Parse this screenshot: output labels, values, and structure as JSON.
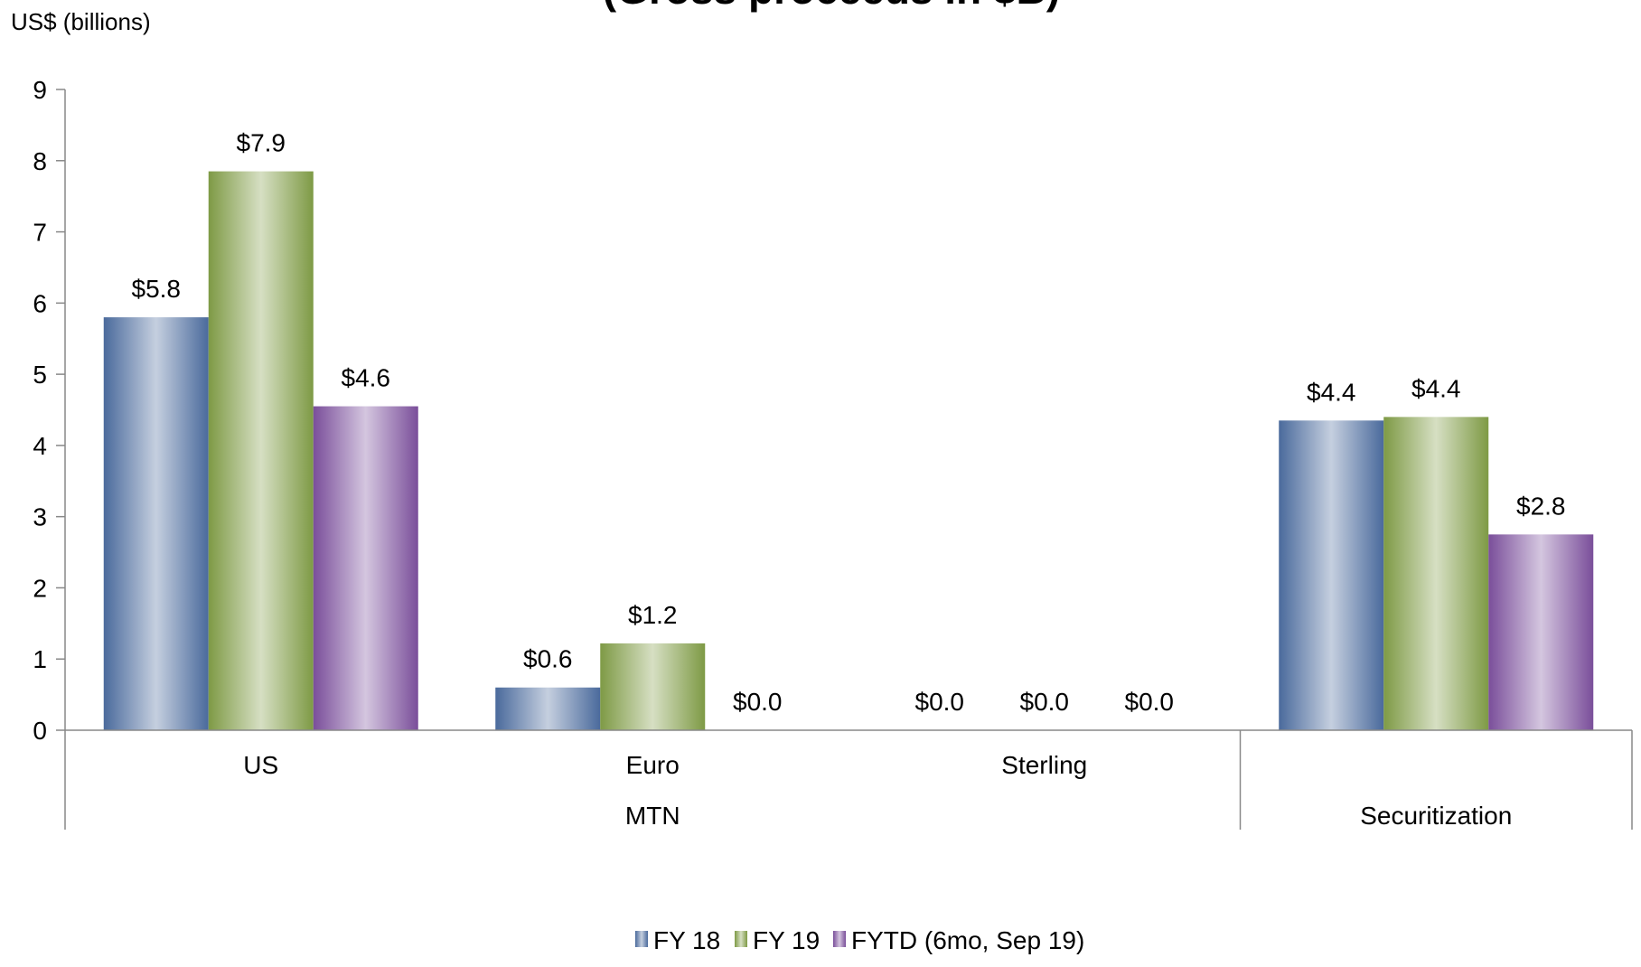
{
  "chart_data": {
    "type": "bar",
    "title": "(Gross proceeds in $B)",
    "ylabel": "US$ (billions)",
    "xlabel": "",
    "ylim": [
      0,
      9
    ],
    "yticks": [
      "0",
      "1",
      "2",
      "3",
      "4",
      "5",
      "6",
      "7",
      "8",
      "9"
    ],
    "grid": false,
    "legend_position": "bottom-center",
    "categories": [
      "US",
      "Euro",
      "Sterling",
      "Securitization"
    ],
    "groups": [
      {
        "label": "MTN",
        "categories": [
          "US",
          "Euro",
          "Sterling"
        ]
      },
      {
        "label": "Securitization",
        "categories": [
          "Securitization"
        ]
      }
    ],
    "series": [
      {
        "name": "FY 18",
        "color": "#4a6a9c",
        "values": [
          5.8,
          0.6,
          0.0,
          4.35
        ],
        "labels": [
          "$5.8",
          "$0.6",
          "$0.0",
          "$4.4"
        ]
      },
      {
        "name": "FY 19",
        "color": "#7e9a45",
        "values": [
          7.85,
          1.22,
          0.0,
          4.4
        ],
        "labels": [
          "$7.9",
          "$1.2",
          "$0.0",
          "$4.4"
        ]
      },
      {
        "name": "FYTD (6mo, Sep 19)",
        "color": "#7a4e9a",
        "values": [
          4.55,
          0.0,
          0.0,
          2.75
        ],
        "labels": [
          "$4.6",
          "$0.0",
          "$0.0",
          "$2.8"
        ]
      }
    ]
  }
}
